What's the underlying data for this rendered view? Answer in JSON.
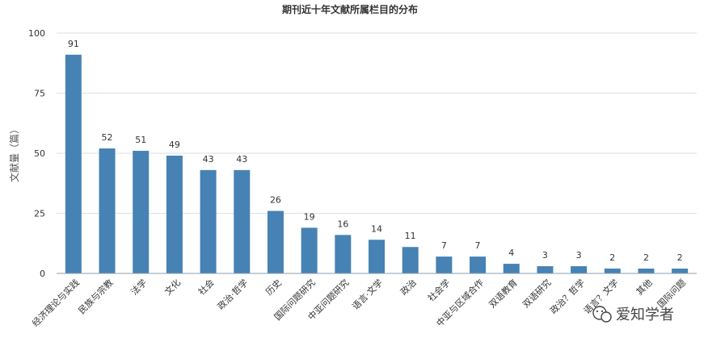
{
  "chart_data": {
    "type": "bar",
    "title": "期刊近十年文献所属栏目的分布",
    "xlabel": "",
    "ylabel": "文献量（篇）",
    "ylim": [
      0,
      100
    ],
    "yticks": [
      0,
      25,
      50,
      75,
      100
    ],
    "grid": true,
    "bar_color": "#4682b4",
    "categories": [
      "经济理论与实践",
      "民族与宗教",
      "法学",
      "文化",
      "社会",
      "政治·哲学",
      "历史",
      "国际问题研究",
      "中亚问题研究",
      "语言·文学",
      "政治",
      "社会学",
      "中亚与区域合作",
      "双语教育",
      "双语研究",
      "政治？哲学",
      "语言？文学",
      "其他",
      "国际问题"
    ],
    "values": [
      91,
      52,
      51,
      49,
      43,
      43,
      26,
      19,
      16,
      14,
      11,
      7,
      7,
      4,
      3,
      3,
      2,
      2,
      2
    ]
  },
  "watermark": {
    "icon": "wechat-icon",
    "text": "爱知学者"
  }
}
